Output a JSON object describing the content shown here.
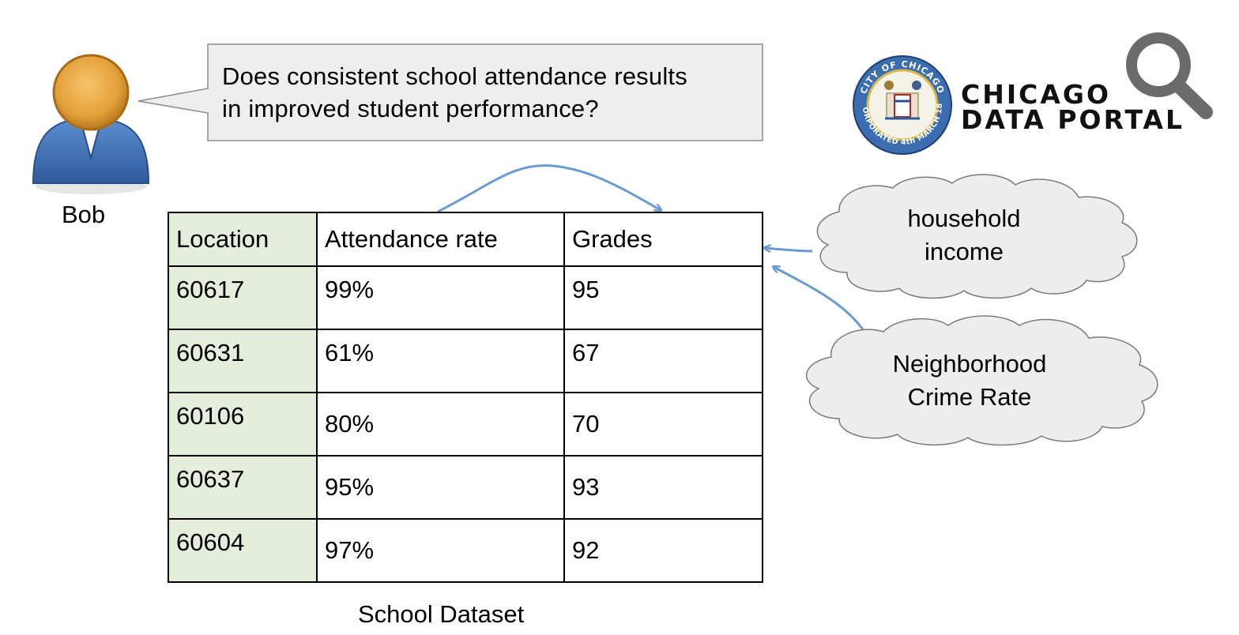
{
  "person": {
    "name": "Bob"
  },
  "speech": {
    "line1": "Does consistent school attendance results",
    "line2": "in improved student performance?"
  },
  "logo": {
    "seal_text_top": "CITY OF CHICAGO",
    "seal_text_bottom": "INCORPORATED 4th MARCH 1837",
    "line1": "CHICAGO",
    "line2": "DATA PORTAL"
  },
  "table": {
    "columns": [
      "Location",
      "Attendance rate",
      "Grades"
    ],
    "rows": [
      [
        "60617",
        "99%",
        "95"
      ],
      [
        "60631",
        "61%",
        "67"
      ],
      [
        "60106",
        "80%",
        "70"
      ],
      [
        "60637",
        "95%",
        "93"
      ],
      [
        "60604",
        "97%",
        "92"
      ]
    ],
    "caption": "School Dataset"
  },
  "clouds": {
    "income": {
      "line1": "household",
      "line2": "income"
    },
    "crime": {
      "line1": "Neighborhood",
      "line2": "Crime Rate"
    }
  },
  "colors": {
    "arrow": "#6a9bd1",
    "location_column": "#e4eedb",
    "bubble_fill": "#eeeeee",
    "cloud_fill": "#ededed",
    "avatar_head": "#e0a23a",
    "avatar_body": "#3e6fb5",
    "logo_search_icon": "#6b6b6b"
  }
}
